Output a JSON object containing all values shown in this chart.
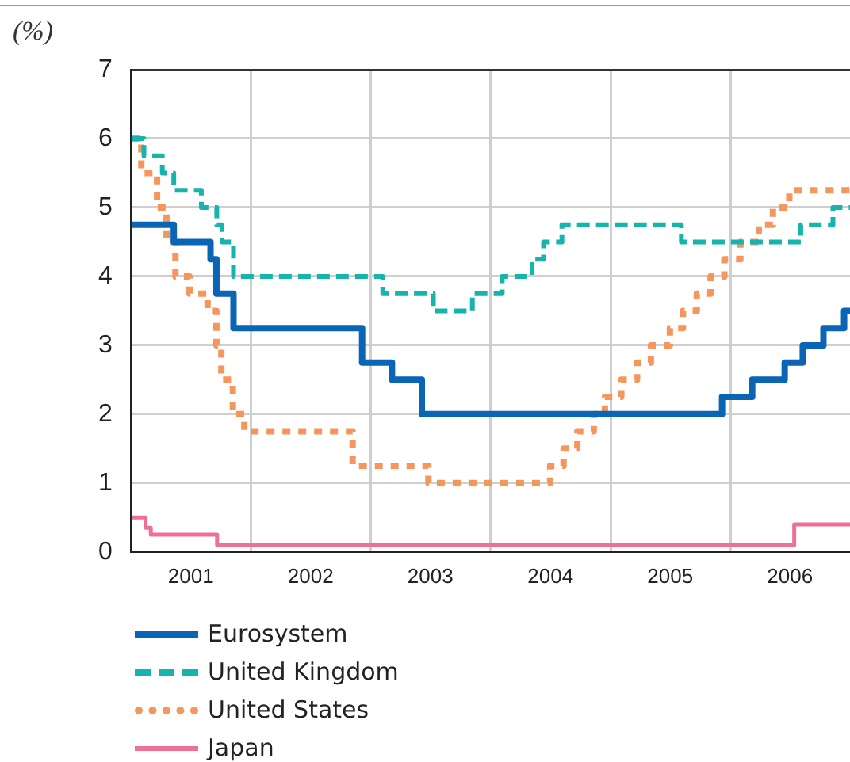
{
  "chart_data": {
    "type": "step",
    "ylabel": "(%)",
    "legend": "bottom",
    "grid": true,
    "xlim": [
      "2001-01-01",
      "2006-12-31"
    ],
    "xticks": [
      {
        "value": "2001-07-01",
        "label": "2001"
      },
      {
        "value": "2002-01-01",
        "label": null
      },
      {
        "value": "2002-07-01",
        "label": "2002"
      },
      {
        "value": "2003-01-01",
        "label": null
      },
      {
        "value": "2003-07-01",
        "label": "2003"
      },
      {
        "value": "2004-01-01",
        "label": null
      },
      {
        "value": "2004-07-01",
        "label": "2004"
      },
      {
        "value": "2005-01-01",
        "label": null
      },
      {
        "value": "2005-07-01",
        "label": "2005"
      },
      {
        "value": "2006-01-01",
        "label": null
      },
      {
        "value": "2006-07-01",
        "label": "2006"
      }
    ],
    "ylim": [
      0,
      7
    ],
    "yticks": [
      0,
      1,
      2,
      3,
      4,
      5,
      6,
      7
    ],
    "series": [
      {
        "name": "Eurosystem",
        "color": "#0a66b5",
        "line_style": "solid",
        "x": [
          "2001-01-01",
          "2001-05-10",
          "2001-08-30",
          "2001-09-17",
          "2001-11-08",
          "2002-12-05",
          "2003-03-06",
          "2003-06-05",
          "2005-12-06",
          "2006-03-08",
          "2006-06-15",
          "2006-08-09",
          "2006-10-11",
          "2006-12-13",
          "2006-12-31"
        ],
        "values": [
          4.75,
          4.5,
          4.25,
          3.75,
          3.25,
          2.75,
          2.5,
          2,
          2.25,
          2.5,
          2.75,
          3,
          3.25,
          3.5,
          3.5
        ]
      },
      {
        "name": "United Kingdom",
        "color": "#17b3ad",
        "line_style": "dashed",
        "x": [
          "2001-01-01",
          "2001-02-08",
          "2001-04-05",
          "2001-05-10",
          "2001-08-02",
          "2001-09-18",
          "2001-10-04",
          "2001-11-08",
          "2003-02-06",
          "2003-07-10",
          "2003-11-06",
          "2004-02-05",
          "2004-05-06",
          "2004-06-10",
          "2004-08-05",
          "2005-08-04",
          "2006-08-03",
          "2006-11-09",
          "2006-12-31"
        ],
        "values": [
          6,
          5.75,
          5.5,
          5.25,
          5,
          4.75,
          4.5,
          4,
          3.75,
          3.5,
          3.75,
          4,
          4.25,
          4.5,
          4.75,
          4.5,
          4.75,
          5,
          5
        ]
      },
      {
        "name": "United States",
        "color": "#f5975c",
        "line_style": "dotted",
        "x": [
          "2001-01-01",
          "2001-01-31",
          "2001-03-20",
          "2001-04-18",
          "2001-05-15",
          "2001-06-27",
          "2001-08-21",
          "2001-09-17",
          "2001-10-02",
          "2001-11-06",
          "2001-12-11",
          "2002-11-06",
          "2003-06-25",
          "2004-06-30",
          "2004-08-10",
          "2004-09-21",
          "2004-11-10",
          "2004-12-14",
          "2005-02-02",
          "2005-03-22",
          "2005-05-03",
          "2005-06-30",
          "2005-08-09",
          "2005-09-20",
          "2005-11-01",
          "2005-12-13",
          "2006-01-31",
          "2006-03-28",
          "2006-05-10",
          "2006-06-29",
          "2006-12-31"
        ],
        "values": [
          6,
          5.5,
          5,
          4.5,
          4,
          3.75,
          3.5,
          3,
          2.5,
          2,
          1.75,
          1.25,
          1,
          1.25,
          1.5,
          1.75,
          2,
          2.25,
          2.5,
          2.75,
          3,
          3.25,
          3.5,
          3.75,
          4,
          4.25,
          4.5,
          4.75,
          5,
          5.25,
          5.25
        ]
      },
      {
        "name": "Japan",
        "color": "#ee7094",
        "line_style": "solid",
        "x": [
          "2001-01-01",
          "2001-02-13",
          "2001-03-01",
          "2001-09-19",
          "2006-07-14",
          "2006-12-31"
        ],
        "values": [
          0.5,
          0.35,
          0.25,
          0.1,
          0.4,
          0.4
        ]
      }
    ]
  }
}
